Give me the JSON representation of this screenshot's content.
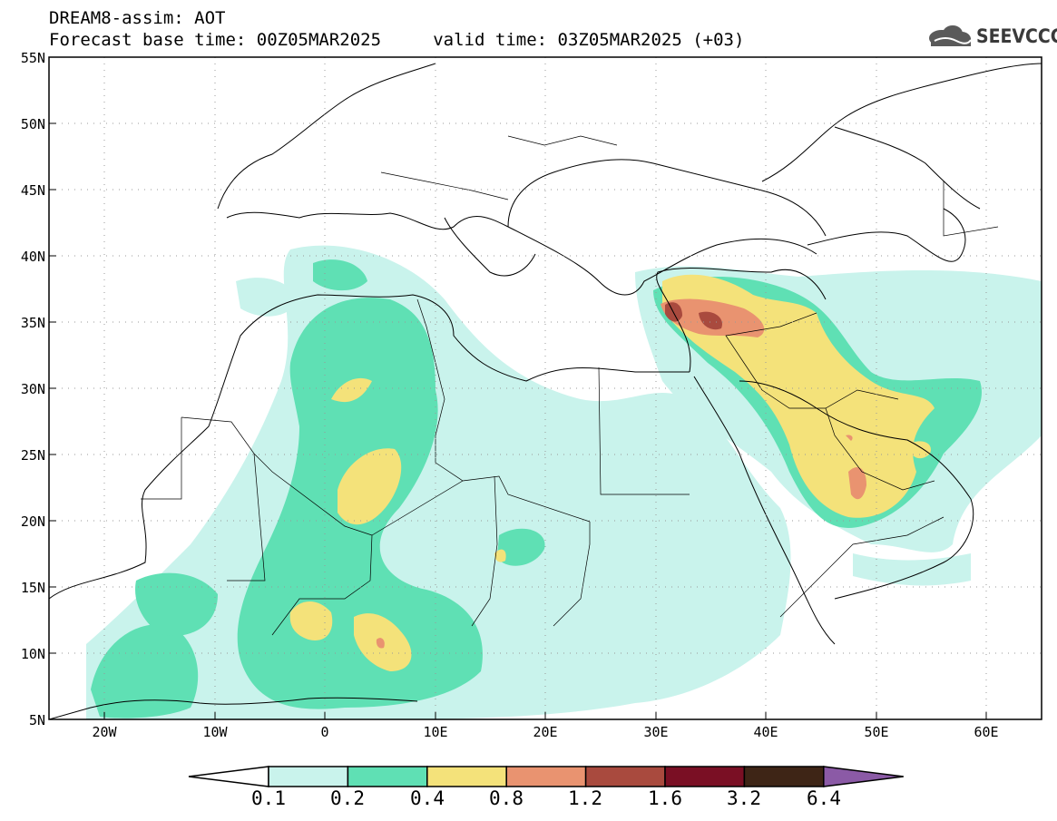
{
  "header": {
    "line1": "DREAM8-assim: AOT",
    "line2": "Forecast base time: 00Z05MAR2025     valid time: 03Z05MAR2025 (+03)"
  },
  "logo": {
    "text": "SEEVCCC",
    "icon": "cloud-icon"
  },
  "map": {
    "lat_range": [
      5,
      55
    ],
    "lon_range": [
      -25,
      65
    ],
    "lat_labels": [
      "55N",
      "50N",
      "45N",
      "40N",
      "35N",
      "30N",
      "25N",
      "20N",
      "15N",
      "10N",
      "5N"
    ],
    "lon_labels": [
      "20W",
      "10W",
      "0",
      "10E",
      "20E",
      "30E",
      "40E",
      "50E",
      "60E"
    ],
    "grid": "dotted"
  },
  "colorbar": {
    "levels": [
      "0.1",
      "0.2",
      "0.4",
      "0.8",
      "1.2",
      "1.6",
      "3.2",
      "6.4"
    ],
    "colors": [
      "#ffffff",
      "#c9f3ec",
      "#5fe0b4",
      "#f4e27a",
      "#e99370",
      "#a94a3e",
      "#7a0f24",
      "#3e2516",
      "#8b5aa6"
    ]
  }
}
